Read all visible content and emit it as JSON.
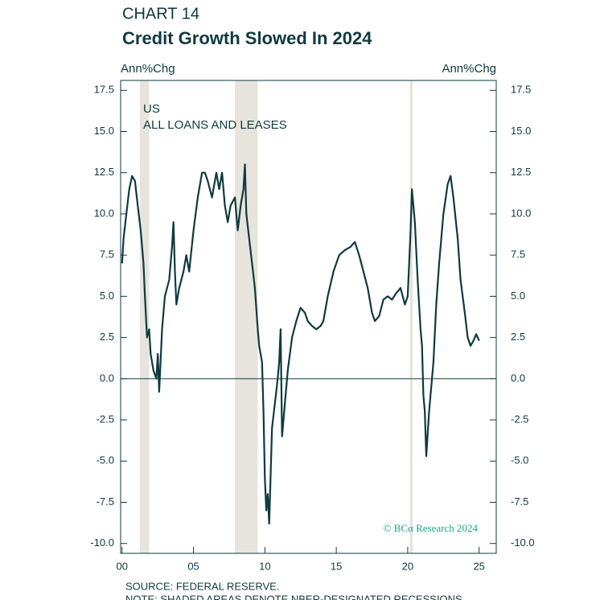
{
  "chart_data": {
    "type": "line",
    "label": "CHART 14",
    "title": "Credit Growth Slowed In 2024",
    "y_axis_label": "Ann%Chg",
    "y2_axis_label": "Ann%Chg",
    "annotation_country": "US",
    "annotation_series": "ALL LOANS AND LEASES",
    "watermark": "© BCα Research 2024",
    "source": "SOURCE: FEDERAL RESERVE.",
    "note": "NOTE: SHADED AREAS DENOTE NBER-DESIGNATED RECESSIONS.",
    "color": "#0f3a3f",
    "recession_color": "#e6e4dc",
    "recessions": [
      [
        2001.25,
        2001.9
      ],
      [
        2007.9,
        2009.5
      ],
      [
        2020.15,
        2020.35
      ]
    ],
    "xlim": [
      1999.9,
      2026.2
    ],
    "ylim": [
      -10.6,
      18.1
    ],
    "xticks": [
      {
        "value": 2000,
        "label": "00"
      },
      {
        "value": 2005,
        "label": "05"
      },
      {
        "value": 2010,
        "label": "10"
      },
      {
        "value": 2015,
        "label": "15"
      },
      {
        "value": 2020,
        "label": "20"
      },
      {
        "value": 2025,
        "label": "25"
      }
    ],
    "yticks": [
      {
        "value": -10,
        "label": "-10.0"
      },
      {
        "value": -7.5,
        "label": "-7.5"
      },
      {
        "value": -5,
        "label": "-5.0"
      },
      {
        "value": -2.5,
        "label": "-2.5"
      },
      {
        "value": 0,
        "label": "0.0"
      },
      2.5,
      {
        "value": 5,
        "label": "5.0"
      },
      7.5,
      {
        "value": 10,
        "label": "10.0"
      },
      12.5,
      {
        "value": 15,
        "label": "15.0"
      },
      17.5
    ],
    "x": [
      2000.0,
      2000.1,
      2000.3,
      2000.5,
      2000.7,
      2000.9,
      2001.1,
      2001.3,
      2001.5,
      2001.6,
      2001.75,
      2001.9,
      2002.0,
      2002.2,
      2002.4,
      2002.5,
      2002.6,
      2002.8,
      2003.0,
      2003.3,
      2003.5,
      2003.6,
      2003.7,
      2003.8,
      2004.0,
      2004.3,
      2004.5,
      2004.7,
      2005.0,
      2005.3,
      2005.6,
      2005.8,
      2006.0,
      2006.3,
      2006.6,
      2006.8,
      2007.0,
      2007.2,
      2007.4,
      2007.6,
      2007.9,
      2008.0,
      2008.1,
      2008.3,
      2008.5,
      2008.6,
      2008.7,
      2008.9,
      2009.1,
      2009.3,
      2009.5,
      2009.6,
      2009.8,
      2009.9,
      2010.0,
      2010.1,
      2010.2,
      2010.3,
      2010.4,
      2010.5,
      2010.7,
      2010.9,
      2011.0,
      2011.1,
      2011.2,
      2011.4,
      2011.6,
      2011.9,
      2012.2,
      2012.5,
      2012.8,
      2013.0,
      2013.3,
      2013.6,
      2013.9,
      2014.1,
      2014.4,
      2014.8,
      2015.2,
      2015.6,
      2016.0,
      2016.3,
      2016.6,
      2016.9,
      2017.2,
      2017.5,
      2017.7,
      2018.0,
      2018.3,
      2018.6,
      2018.9,
      2019.2,
      2019.5,
      2019.8,
      2020.0,
      2020.2,
      2020.3,
      2020.5,
      2020.7,
      2020.9,
      2021.0,
      2021.1,
      2021.2,
      2021.3,
      2021.5,
      2021.8,
      2022.0,
      2022.2,
      2022.5,
      2022.8,
      2023.0,
      2023.2,
      2023.5,
      2023.7,
      2024.0,
      2024.2,
      2024.4,
      2024.6,
      2024.8,
      2025.0
    ],
    "values": [
      7.0,
      8.5,
      10,
      11.5,
      12.3,
      12,
      10.5,
      9,
      7,
      5,
      2.5,
      3,
      1.5,
      0.5,
      0,
      1.5,
      -0.8,
      3,
      5,
      6,
      8,
      9.5,
      6.5,
      4.5,
      5.5,
      6.5,
      7.5,
      6.5,
      9,
      11,
      12.5,
      12.5,
      12,
      11,
      12.5,
      11.5,
      12.5,
      10.5,
      9.5,
      10.5,
      11,
      10,
      9,
      10.5,
      11.5,
      13,
      10,
      8.5,
      7,
      5.5,
      3,
      2,
      1,
      -2,
      -6,
      -8,
      -7,
      -8.8,
      -6,
      -3,
      -1.5,
      0,
      1,
      3,
      -3.5,
      -1.5,
      0.5,
      2.5,
      3.5,
      4.3,
      4,
      3.5,
      3.2,
      3,
      3.2,
      3.5,
      5,
      6.5,
      7.5,
      7.8,
      8,
      8.3,
      7.5,
      6.5,
      5.5,
      4,
      3.5,
      3.8,
      4.8,
      5,
      4.8,
      5.2,
      5.5,
      4.5,
      5,
      9,
      11.5,
      9.5,
      6,
      3,
      2,
      -1,
      -2,
      -4.7,
      -2,
      1,
      4.5,
      7,
      10,
      11.8,
      12.3,
      11,
      8.5,
      6,
      4,
      2.5,
      2,
      2.3,
      2.7,
      2.3
    ]
  }
}
